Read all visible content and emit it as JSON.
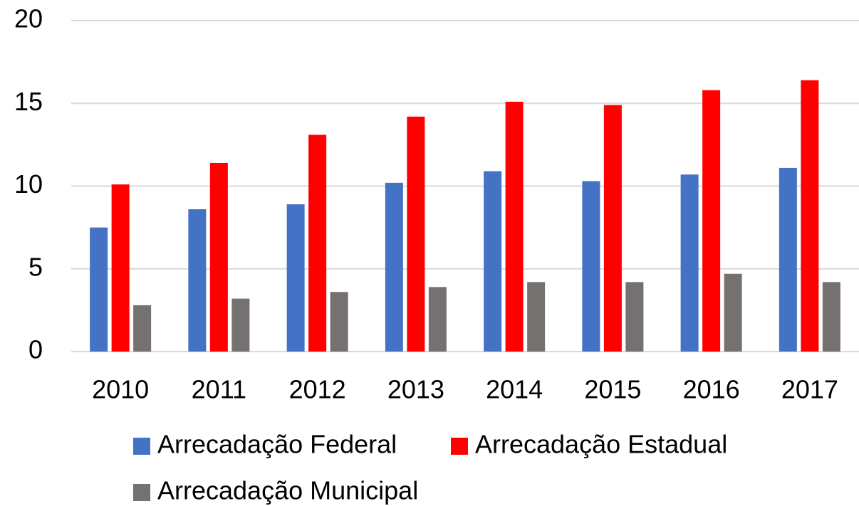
{
  "chart_data": {
    "type": "bar",
    "categories": [
      "2010",
      "2011",
      "2012",
      "2013",
      "2014",
      "2015",
      "2016",
      "2017"
    ],
    "series": [
      {
        "name": "Arrecadação Federal",
        "color": "#4472c4",
        "values": [
          7.5,
          8.6,
          8.9,
          10.2,
          10.9,
          10.3,
          10.7,
          11.1
        ]
      },
      {
        "name": "Arrecadação Estadual",
        "color": "#ff0000",
        "values": [
          10.1,
          11.4,
          13.1,
          14.2,
          15.1,
          14.9,
          15.8,
          16.4
        ]
      },
      {
        "name": "Arrecadação Municipal",
        "color": "#767171",
        "values": [
          2.8,
          3.2,
          3.6,
          3.9,
          4.2,
          4.2,
          4.7,
          4.2
        ]
      }
    ],
    "ylim": [
      0,
      20
    ],
    "yticks": [
      0,
      5,
      10,
      15,
      20
    ],
    "grid": true,
    "legend": "bottom"
  }
}
